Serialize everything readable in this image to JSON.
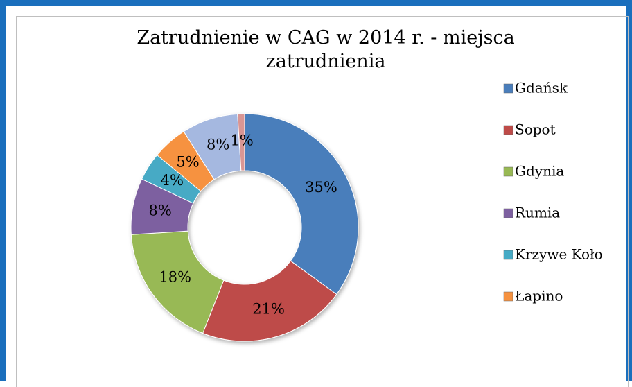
{
  "chart_data": {
    "type": "donut",
    "title": "Zatrudnienie w CAG w 2014 r. - miejsca zatrudnienia",
    "categories": [
      "Gdańsk",
      "Sopot",
      "Gdynia",
      "Rumia",
      "Krzywe Koło",
      "Łapino",
      null,
      null
    ],
    "values": [
      35,
      21,
      18,
      8,
      4,
      5,
      8,
      1
    ],
    "value_labels": [
      "35%",
      "21%",
      "18%",
      "8%",
      "4%",
      "5%",
      "8%",
      "1%"
    ],
    "colors": [
      "#4a7ebb",
      "#be4b48",
      "#98b954",
      "#7d60a0",
      "#46aac5",
      "#f69240",
      "#a5b8e0",
      "#d99694"
    ],
    "legend": "right"
  }
}
